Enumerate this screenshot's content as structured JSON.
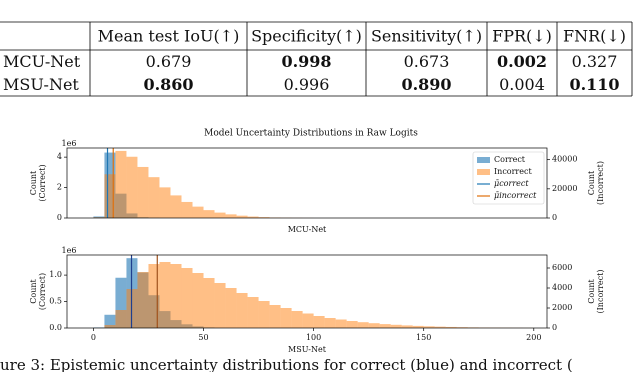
{
  "table": {
    "header": [
      "",
      "Mean test IoU(↑)",
      "Specificity(↑)",
      "Sensitivity(↑)",
      "FPR(↓)",
      "FNR(↓)"
    ],
    "rows": [
      [
        "MCU-Net",
        "0.679",
        "0.998",
        "0.673",
        "0.002",
        "0.327"
      ],
      [
        "MSU-Net",
        "0.860",
        "0.996",
        "0.890",
        "0.004",
        "0.110"
      ]
    ],
    "bold": [
      [
        false,
        false,
        true,
        false,
        true,
        false
      ],
      [
        false,
        true,
        false,
        true,
        false,
        true
      ]
    ]
  },
  "chart_data": [
    {
      "type": "histogram",
      "title": "Model Uncertainty Distributions in Raw Logits",
      "xlabel": "MCU-Net",
      "ylabel": [
        "Count",
        "(Correct)"
      ],
      "y2label": [
        "Count",
        "(Incorrect)"
      ],
      "y_offset": "1e6",
      "xlim": [
        -12,
        206
      ],
      "ylim": [
        0,
        4.6
      ],
      "yticks": [
        0,
        2,
        4
      ],
      "y2lim": [
        0,
        48000
      ],
      "y2ticks": [
        0,
        20000,
        40000
      ],
      "legend": "upper right",
      "bins": [
        0,
        5,
        10,
        15,
        20,
        25,
        30,
        35,
        40,
        45,
        50,
        55,
        60,
        65,
        70,
        75,
        80,
        85,
        90,
        95,
        100,
        105,
        110,
        115,
        120,
        125,
        130,
        135,
        140,
        145,
        150,
        155,
        160,
        165,
        170,
        175,
        180,
        185,
        190,
        195,
        200
      ],
      "series": [
        {
          "name": "Correct",
          "color": "#1f77b4",
          "opacity": 0.6,
          "values": [
            0.1,
            4.3,
            1.6,
            0.3,
            0.05,
            0.01,
            0,
            0,
            0,
            0,
            0,
            0,
            0,
            0,
            0,
            0,
            0,
            0,
            0,
            0,
            0,
            0,
            0,
            0,
            0,
            0,
            0,
            0,
            0,
            0,
            0,
            0,
            0,
            0,
            0,
            0,
            0,
            0,
            0,
            0
          ]
        },
        {
          "name": "Incorrect",
          "color": "#ff7f0e",
          "opacity": 0.5,
          "axis": "y2",
          "values": [
            500,
            30000,
            46000,
            42000,
            35000,
            28000,
            21000,
            15500,
            11000,
            7800,
            5400,
            3700,
            2500,
            1600,
            1000,
            600,
            350,
            200,
            100,
            50,
            0,
            0,
            0,
            0,
            0,
            0,
            0,
            0,
            0,
            0,
            0,
            0,
            0,
            0,
            0,
            0,
            0,
            0,
            0,
            0
          ]
        }
      ],
      "vlines": [
        {
          "name": "μ̄correct",
          "color": "#1f77b4",
          "value": 6.4
        },
        {
          "name": "μ̄incorrect",
          "color": "#e0700c",
          "value": 9
        }
      ]
    },
    {
      "type": "histogram",
      "xlabel": "MSU-Net",
      "ylabel": [
        "Count",
        "(Correct)"
      ],
      "y2label": [
        "Count",
        "(Incorrect)"
      ],
      "y_offset": "1e6",
      "xlim": [
        -12,
        206
      ],
      "xticks": [
        0,
        50,
        100,
        150,
        200
      ],
      "ylim": [
        0,
        1.38
      ],
      "yticks": [
        {
          "value": 0,
          "label": "0.0"
        },
        {
          "value": 0.5,
          "label": "0.5"
        },
        {
          "value": 1,
          "label": "1.0"
        }
      ],
      "y2lim": [
        0,
        7300
      ],
      "y2ticks": [
        0,
        2000,
        4000,
        6000
      ],
      "bins": [
        0,
        5,
        10,
        15,
        20,
        25,
        30,
        35,
        40,
        45,
        50,
        55,
        60,
        65,
        70,
        75,
        80,
        85,
        90,
        95,
        100,
        105,
        110,
        115,
        120,
        125,
        130,
        135,
        140,
        145,
        150,
        155,
        160,
        165,
        170,
        175,
        180,
        185,
        190,
        195,
        200
      ],
      "series": [
        {
          "name": "Correct",
          "color": "#1f77b4",
          "opacity": 0.6,
          "values": [
            0.01,
            0.25,
            0.95,
            1.32,
            1.05,
            0.62,
            0.32,
            0.15,
            0.07,
            0.03,
            0.01,
            0,
            0,
            0,
            0,
            0,
            0,
            0,
            0,
            0,
            0,
            0,
            0,
            0,
            0,
            0,
            0,
            0,
            0,
            0,
            0,
            0,
            0,
            0,
            0,
            0,
            0,
            0,
            0,
            0
          ]
        },
        {
          "name": "Incorrect",
          "color": "#ff7f0e",
          "opacity": 0.5,
          "axis": "y2",
          "values": [
            0,
            300,
            1800,
            3900,
            5600,
            6400,
            6600,
            6400,
            6000,
            5500,
            5000,
            4500,
            4000,
            3500,
            3100,
            2700,
            2300,
            2000,
            1700,
            1450,
            1200,
            1000,
            850,
            700,
            580,
            480,
            390,
            320,
            260,
            210,
            170,
            135,
            105,
            80,
            60,
            45,
            35,
            25,
            18,
            12
          ]
        }
      ],
      "vlines": [
        {
          "name": "μ̄correct",
          "color": "#1f3f8f",
          "value": 17.3
        },
        {
          "name": "μ̄incorrect",
          "color": "#a0521c",
          "value": 29
        }
      ]
    }
  ],
  "caption": "ure 3: Epistemic uncertainty distributions for correct (blue) and incorrect ("
}
